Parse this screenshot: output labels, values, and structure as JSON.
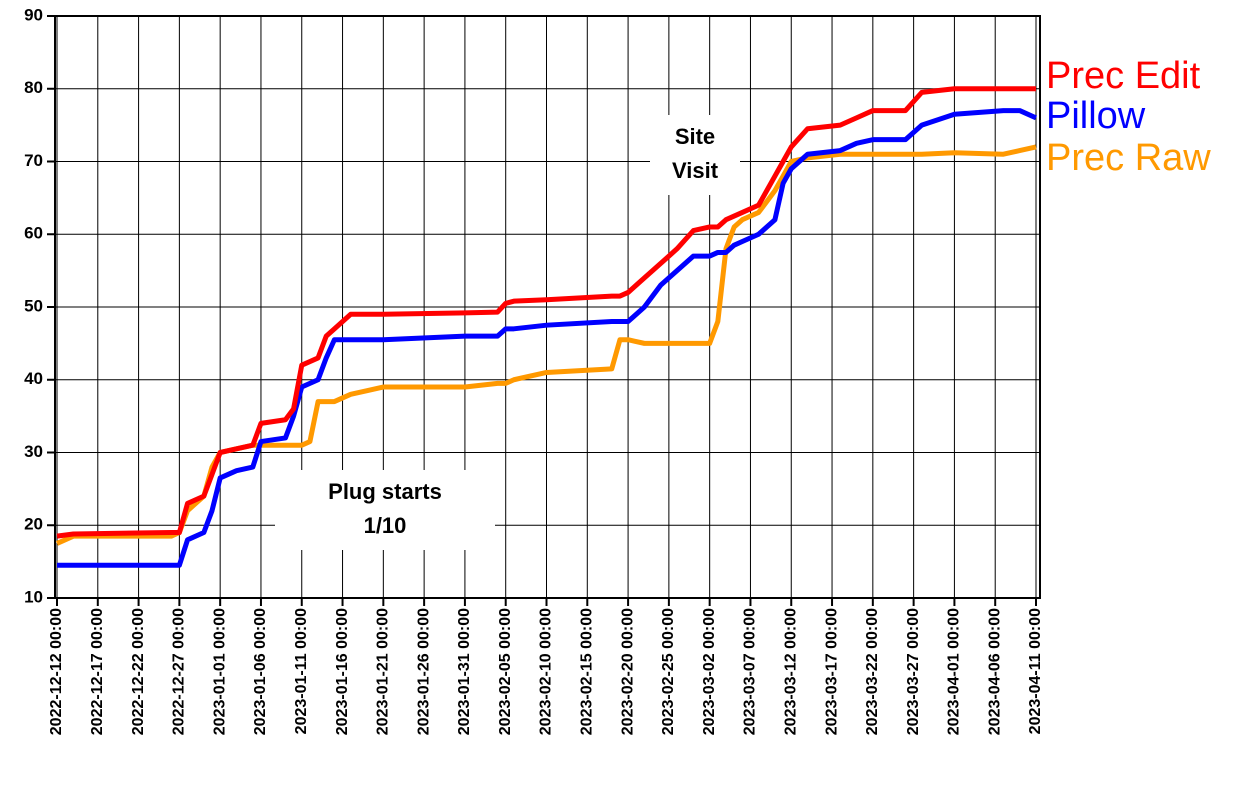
{
  "chart_data": {
    "type": "line",
    "x": [
      "2022-12-12 00:00",
      "2022-12-14 00:00",
      "2022-12-26 00:00",
      "2022-12-27 00:00",
      "2022-12-28 00:00",
      "2022-12-30 00:00",
      "2022-12-31 00:00",
      "2023-01-01 00:00",
      "2023-01-03 00:00",
      "2023-01-05 00:00",
      "2023-01-06 00:00",
      "2023-01-09 00:00",
      "2023-01-10 00:00",
      "2023-01-11 00:00",
      "2023-01-12 00:00",
      "2023-01-13 00:00",
      "2023-01-14 00:00",
      "2023-01-15 00:00",
      "2023-01-17 00:00",
      "2023-01-19 00:00",
      "2023-01-21 00:00",
      "2023-01-31 00:00",
      "2023-02-04 00:00",
      "2023-02-05 00:00",
      "2023-02-06 00:00",
      "2023-02-10 00:00",
      "2023-02-18 00:00",
      "2023-02-19 00:00",
      "2023-02-20 00:00",
      "2023-02-22 00:00",
      "2023-02-24 00:00",
      "2023-02-25 00:00",
      "2023-02-26 00:00",
      "2023-02-28 00:00",
      "2023-03-02 00:00",
      "2023-03-03 00:00",
      "2023-03-04 00:00",
      "2023-03-05 00:00",
      "2023-03-06 00:00",
      "2023-03-08 00:00",
      "2023-03-10 00:00",
      "2023-03-11 00:00",
      "2023-03-12 00:00",
      "2023-03-14 00:00",
      "2023-03-18 00:00",
      "2023-03-20 00:00",
      "2023-03-22 00:00",
      "2023-03-26 00:00",
      "2023-03-28 00:00",
      "2023-04-01 00:00",
      "2023-04-07 00:00",
      "2023-04-09 00:00",
      "2023-04-11 00:00"
    ],
    "series": [
      {
        "name": "Prec Raw",
        "color": "#ff9900",
        "values": [
          17.5,
          18.5,
          18.5,
          19,
          22,
          24,
          28,
          30,
          30.5,
          31,
          31,
          31,
          31,
          31,
          31.5,
          37,
          37,
          37,
          38,
          38.5,
          39,
          39,
          39.5,
          39.5,
          40,
          41,
          41.5,
          45.5,
          45.5,
          45,
          45,
          45,
          45,
          45,
          45,
          48,
          58,
          61,
          62,
          63,
          66,
          68,
          70,
          70.5,
          71,
          71,
          71,
          71,
          71,
          71.2,
          71,
          71.5,
          72
        ]
      },
      {
        "name": "Pillow",
        "color": "#0000ff",
        "values": [
          14.5,
          14.5,
          14.5,
          14.5,
          18,
          19,
          22,
          26.5,
          27.5,
          28,
          31.5,
          32,
          35,
          39,
          39.5,
          40,
          43,
          45.5,
          45.5,
          45.5,
          45.5,
          46,
          46,
          47,
          47,
          47.5,
          48,
          48,
          48,
          50,
          53,
          54,
          55,
          57,
          57,
          57.5,
          57.5,
          58.5,
          59,
          60,
          62,
          67,
          69,
          71,
          71.5,
          72.5,
          73,
          73,
          75,
          76.5,
          77,
          77,
          76
        ]
      },
      {
        "name": "Prec Edit",
        "color": "#ff0000",
        "values": [
          18.5,
          18.8,
          19,
          19,
          23,
          24,
          27,
          30,
          30.5,
          31,
          34,
          34.5,
          36,
          42,
          42.5,
          43,
          46,
          47,
          49,
          49,
          49,
          49.2,
          49.3,
          50.5,
          50.8,
          51,
          51.5,
          51.5,
          52,
          54,
          56,
          57,
          58,
          60.5,
          61,
          61,
          62,
          62.5,
          63,
          64,
          68,
          70,
          72,
          74.5,
          75,
          76,
          77,
          77,
          79.5,
          80,
          80,
          80,
          80
        ]
      }
    ],
    "xticks": [
      "2022-12-12 00:00",
      "2022-12-17 00:00",
      "2022-12-22 00:00",
      "2022-12-27 00:00",
      "2023-01-01 00:00",
      "2023-01-06 00:00",
      "2023-01-11 00:00",
      "2023-01-16 00:00",
      "2023-01-21 00:00",
      "2023-01-26 00:00",
      "2023-01-31 00:00",
      "2023-02-05 00:00",
      "2023-02-10 00:00",
      "2023-02-15 00:00",
      "2023-02-20 00:00",
      "2023-02-25 00:00",
      "2023-03-02 00:00",
      "2023-03-07 00:00",
      "2023-03-12 00:00",
      "2023-03-17 00:00",
      "2023-03-22 00:00",
      "2023-03-27 00:00",
      "2023-04-01 00:00",
      "2023-04-06 00:00",
      "2023-04-11 00:00"
    ],
    "ylim": [
      10,
      90
    ],
    "yticks": [
      10,
      20,
      30,
      40,
      50,
      60,
      70,
      80,
      90
    ],
    "grid": true,
    "annotations": [
      [
        "Site",
        "Visit"
      ],
      [
        "Plug starts",
        "1/10"
      ]
    ]
  }
}
